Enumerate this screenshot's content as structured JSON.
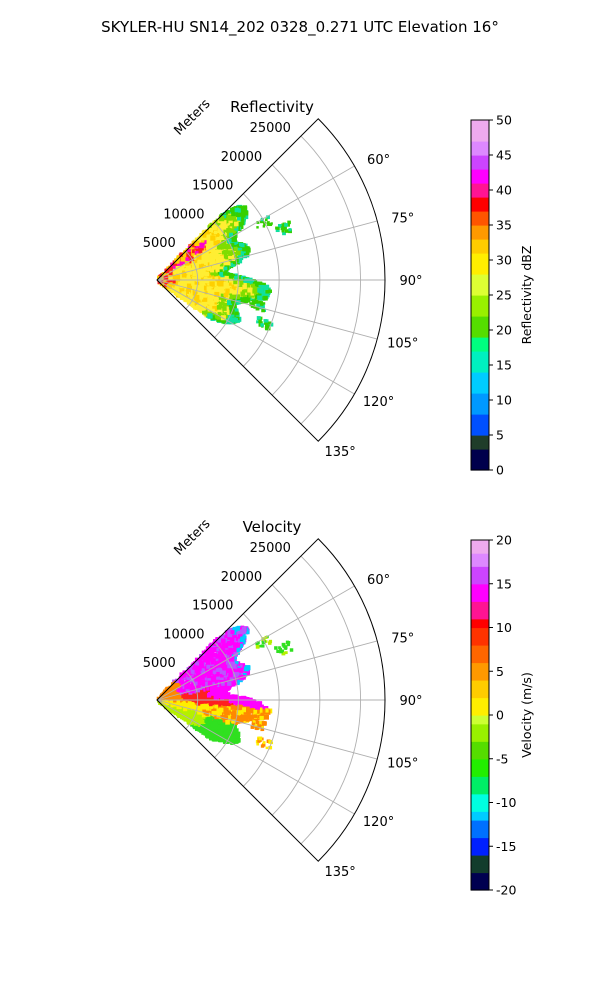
{
  "figure": {
    "title": "SKYLER-HU  SN14_202  0328_0.271 UTC Elevation 16°"
  },
  "chart_data": [
    {
      "type": "heatmap",
      "projection": "polar-sector",
      "title": "Reflectivity",
      "radial_label": "Meters",
      "radial_ticks": [
        5000,
        10000,
        15000,
        20000,
        25000
      ],
      "radial_tick_labels": [
        "5000",
        "10000",
        "15000",
        "20000",
        "25000"
      ],
      "rmax": 28000,
      "theta_range_deg": [
        45,
        135
      ],
      "theta_ticks": [
        60,
        75,
        90,
        105,
        120,
        135
      ],
      "theta_tick_labels": [
        "60°",
        "75°",
        "90°",
        "105°",
        "120°",
        "135°"
      ],
      "grid": true,
      "colorbar": {
        "label": "Reflectivity dBZ",
        "range": [
          0,
          50
        ],
        "ticks": [
          0,
          5,
          10,
          15,
          20,
          25,
          30,
          35,
          40,
          45,
          50
        ],
        "tick_labels": [
          "0",
          "5",
          "10",
          "15",
          "20",
          "25",
          "30",
          "35",
          "40",
          "45",
          "50"
        ]
      },
      "echo_extent_m": 14500,
      "colors": {
        "near": "#ff2020",
        "mid": "#ffd000",
        "body": "#ffee33",
        "edge": "#7fdd00",
        "outer": "#35d000",
        "fringe": "#10e0a0",
        "core": "#ff00cc"
      }
    },
    {
      "type": "heatmap",
      "projection": "polar-sector",
      "title": "Velocity",
      "radial_label": "Meters",
      "radial_ticks": [
        5000,
        10000,
        15000,
        20000,
        25000
      ],
      "radial_tick_labels": [
        "5000",
        "10000",
        "15000",
        "20000",
        "25000"
      ],
      "rmax": 28000,
      "theta_range_deg": [
        45,
        135
      ],
      "theta_ticks": [
        60,
        75,
        90,
        105,
        120,
        135
      ],
      "theta_tick_labels": [
        "60°",
        "75°",
        "90°",
        "105°",
        "120°",
        "135°"
      ],
      "grid": true,
      "colorbar": {
        "label": "Velocity (m/s)",
        "range": [
          -20,
          20
        ],
        "ticks": [
          -20,
          -15,
          -10,
          -5,
          0,
          5,
          10,
          15,
          20
        ],
        "tick_labels": [
          "-20",
          "-15",
          "-10",
          "-5",
          "0",
          "5",
          "10",
          "15",
          "20"
        ]
      },
      "echo_extent_m": 14500,
      "colors": {
        "inbound_far": "#ff00ff",
        "inbound_mid": "#ff2020",
        "inbound_near": "#ff8800",
        "zero": "#ffee00",
        "outbound_near": "#b5f000",
        "outbound_far": "#30e020",
        "edge_purple": "#bb55ff",
        "edge_cyan": "#00ccff"
      }
    }
  ]
}
